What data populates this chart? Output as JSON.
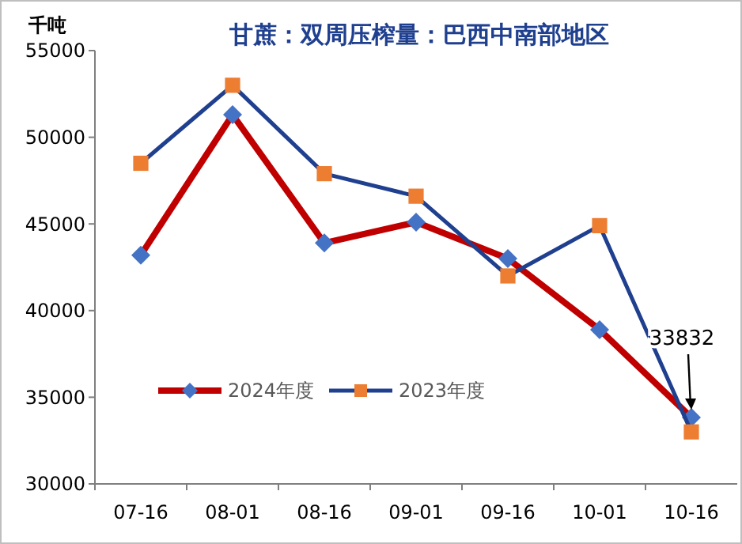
{
  "chart_data": {
    "type": "line",
    "title": "甘蔗：双周压榨量：巴西中南部地区",
    "ylabel": "千吨",
    "categories": [
      "07-16",
      "08-01",
      "08-16",
      "09-01",
      "09-16",
      "10-01",
      "10-16"
    ],
    "series": [
      {
        "name": "2024年度",
        "color": "#c00000",
        "marker": "diamond",
        "colors": [
          "#4472c4",
          "#4472c4",
          "#4472c4",
          "#4472c4",
          "#4472c4",
          "#4472c4",
          "#4472c4"
        ],
        "values": [
          43200,
          51300,
          43900,
          45100,
          43000,
          38900,
          33832
        ]
      },
      {
        "name": "2023年度",
        "color": "#1f3f8f",
        "marker": "square",
        "colors": [
          "#ed7d31",
          "#ed7d31",
          "#ed7d31",
          "#ed7d31",
          "#ed7d31",
          "#ed7d31",
          "#ed7d31"
        ],
        "values": [
          48500,
          53000,
          47900,
          46600,
          42000,
          44900,
          33000
        ]
      }
    ],
    "ylim": [
      30000,
      55000
    ],
    "yticks": [
      30000,
      35000,
      40000,
      45000,
      50000,
      55000
    ],
    "grid": false,
    "legend": "bottom left",
    "annotations": [
      {
        "text": "33832",
        "x": "10-16",
        "y": 33832
      }
    ]
  }
}
